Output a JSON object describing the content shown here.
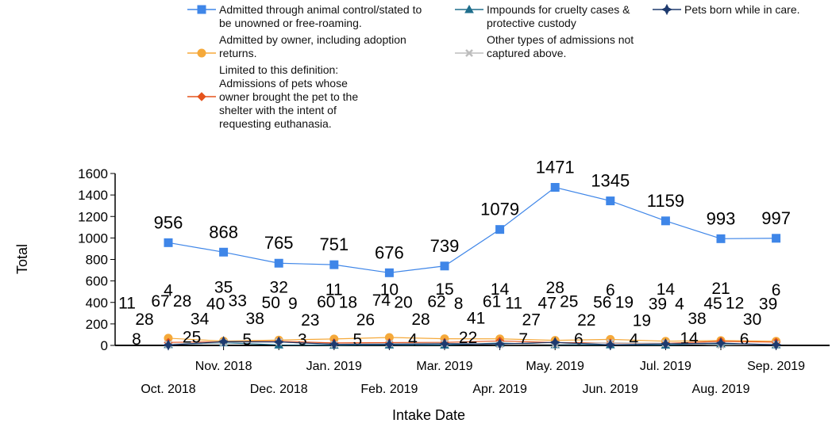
{
  "chart_data": {
    "type": "line",
    "x_label": "Intake Date",
    "y_label": "Total",
    "categories": [
      "Oct. 2018",
      "Nov. 2018",
      "Dec. 2018",
      "Jan. 2019",
      "Feb. 2019",
      "Mar. 2019",
      "Apr. 2019",
      "May. 2019",
      "Jun. 2019",
      "Jul. 2019",
      "Aug. 2019",
      "Sep. 2019"
    ],
    "ylim": [
      0,
      1600
    ],
    "yticks": [
      0,
      200,
      400,
      600,
      800,
      1000,
      1200,
      1400,
      1600
    ],
    "series": [
      {
        "name": "Admitted through animal control/stated to be unowned or free-roaming.",
        "color": "#3f86e8",
        "marker": "square",
        "values": [
          956,
          868,
          765,
          751,
          676,
          739,
          1079,
          1471,
          1345,
          1159,
          993,
          997
        ]
      },
      {
        "name": "Admitted by owner, including adoption returns.",
        "color": "#f5a93a",
        "marker": "circle",
        "values": [
          67,
          40,
          50,
          60,
          74,
          62,
          61,
          47,
          56,
          39,
          45,
          39
        ]
      },
      {
        "name": "Limited to this definition: Admissions of pets whose owner brought the pet to the shelter with the intent of requesting euthanasia.",
        "color": "#e5531c",
        "marker": "diamond",
        "values": [
          28,
          34,
          38,
          23,
          26,
          28,
          41,
          27,
          22,
          19,
          38,
          30
        ]
      },
      {
        "name": "Impounds for cruelty cases & protective custody",
        "color": "#1f6e8c",
        "marker": "triangle",
        "values": [
          8,
          25,
          5,
          3,
          5,
          4,
          22,
          7,
          6,
          4,
          14,
          6
        ]
      },
      {
        "name": "Other types of admissions not captured above.",
        "color": "#bdbdbd",
        "marker": "cross",
        "values": [
          11,
          28,
          33,
          9,
          18,
          20,
          8,
          11,
          25,
          19,
          4,
          12
        ]
      },
      {
        "name": "Pets born while in care.",
        "color": "#1e3a6e",
        "marker": "star",
        "values": [
          4,
          35,
          32,
          11,
          10,
          15,
          14,
          28,
          6,
          14,
          21,
          6
        ]
      }
    ]
  }
}
